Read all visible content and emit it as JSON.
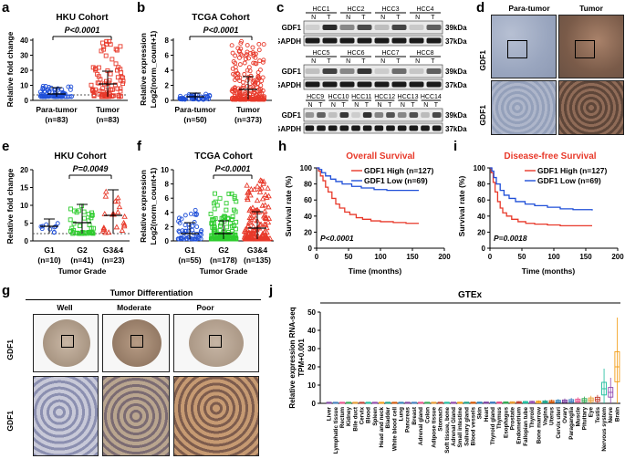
{
  "panels": {
    "a": {
      "letter": "a",
      "title": "HKU Cohort",
      "pvalue": "P<0.0001",
      "ylabel": "Relative fold change",
      "ticks": [
        "0",
        "10",
        "20",
        "30",
        "40"
      ],
      "groups": [
        {
          "name": "Para-tumor",
          "n": "(n=83)"
        },
        {
          "name": "Tumor",
          "n": "(n=83)"
        }
      ]
    },
    "b": {
      "letter": "b",
      "title": "TCGA Cohort",
      "pvalue": "P<0.0001",
      "ylabel": "Relative expression",
      "ylabel2": "Log2(norm_count+1)",
      "ticks": [
        "0",
        "2",
        "4",
        "6",
        "8"
      ],
      "groups": [
        {
          "name": "Para-tumor",
          "n": "(n=50)"
        },
        {
          "name": "Tumor",
          "n": "(n=373)"
        }
      ]
    },
    "c": {
      "letter": "c",
      "rows": [
        {
          "samples": [
            "HCC1",
            "HCC2",
            "HCC3",
            "HCC4"
          ],
          "gdf1": "GDF1",
          "gapdh": "GAPDH",
          "kda1": "39kDa",
          "kda2": "37kDa"
        },
        {
          "samples": [
            "HCC5",
            "HCC6",
            "HCC7",
            "HCC8"
          ],
          "gdf1": "GDF1",
          "gapdh": "GAPDH",
          "kda1": "39kDa",
          "kda2": "37kDa"
        },
        {
          "samples": [
            "HCC9",
            "HCC10",
            "HCC11",
            "HCC12",
            "HCC13",
            "HCC14"
          ],
          "gdf1": "GDF1",
          "gapdh": "GAPDH",
          "kda1": "39kDa",
          "kda2": "37kDa"
        }
      ],
      "nt": [
        "N",
        "T"
      ]
    },
    "d": {
      "letter": "d",
      "col1": "Para-tumor",
      "col2": "Tumor",
      "row_label": "GDF1"
    },
    "e": {
      "letter": "e",
      "title": "HKU Cohort",
      "pvalue": "P=0.0049",
      "ylabel": "Relative fold change",
      "xlabel": "Tumor Grade",
      "ticks": [
        "0",
        "5",
        "10",
        "15",
        "20"
      ],
      "groups": [
        {
          "name": "G1",
          "n": "(n=10)"
        },
        {
          "name": "G2",
          "n": "(n=41)"
        },
        {
          "name": "G3&4",
          "n": "(n=23)"
        }
      ]
    },
    "f": {
      "letter": "f",
      "title": "TCGA Cohort",
      "pvalue": "P<0.0001",
      "ylabel": "Relative expression",
      "ylabel2": "Log2(norm_count+1)",
      "xlabel": "Tumor Grade",
      "ticks": [
        "0",
        "2",
        "4",
        "6",
        "8",
        "10"
      ],
      "groups": [
        {
          "name": "G1",
          "n": "(n=55)"
        },
        {
          "name": "G2",
          "n": "(n=178)"
        },
        {
          "name": "G3&4",
          "n": "(n=135)"
        }
      ]
    },
    "h": {
      "letter": "h",
      "title": "Overall Survival",
      "pvalue": "P<0.0001",
      "ylabel": "Survival rate (%)",
      "xlabel": "Time (months)",
      "legend_high": "GDF1 High (n=127)",
      "legend_low": "GDF1 Low (n=69)",
      "yticks": [
        "0",
        "20",
        "40",
        "60",
        "80",
        "100"
      ],
      "xticks": [
        "0",
        "50",
        "100",
        "150",
        "200"
      ]
    },
    "i": {
      "letter": "i",
      "title": "Disease-free Survival",
      "pvalue": "P=0.0018",
      "ylabel": "Survival rate (%)",
      "xlabel": "Time (months)",
      "legend_high": "GDF1 High (n=127)",
      "legend_low": "GDF1 Low (n=69)",
      "yticks": [
        "0",
        "20",
        "40",
        "60",
        "80",
        "100"
      ],
      "xticks": [
        "0",
        "50",
        "100",
        "150",
        "200"
      ]
    },
    "g": {
      "letter": "g",
      "title": "Tumor Differentiation",
      "cols": [
        "Well",
        "Moderate",
        "Poor"
      ],
      "row_label": "GDF1"
    },
    "j": {
      "letter": "j",
      "title": "GTEx",
      "ylabel": "Relative expression RNA-seq",
      "ylabel2": "TPM+0.001",
      "yticks": [
        "0",
        "10",
        "20",
        "30",
        "40",
        "50"
      ],
      "tissues": [
        "Liver",
        "Lymphatic tissue",
        "Rectum",
        "Kidney",
        "Bile duct",
        "Cervix",
        "Blood",
        "Spleen",
        "Head and neck",
        "Bladder",
        "White blood cell",
        "Lung",
        "Pancreas",
        "Breast",
        "Adrenal gland",
        "Colon",
        "Adipose tissue",
        "Stomach",
        "Soft tissue, bone",
        "Adrenal Gland",
        "Small intestine",
        "Salivary gland",
        "Blood vessels",
        "Skin",
        "Heart",
        "Thyroid gland",
        "Thymus",
        "Esophagus",
        "Prostate",
        "Endometrium",
        "Fallopian tube",
        "Thyroid",
        "Bone marrow",
        "Vagina",
        "Uterus",
        "Cervix uteri",
        "Ovary",
        "Paraganglia",
        "Muscle",
        "Pituitary",
        "Eye",
        "Testis",
        "Nervous system",
        "Nerve",
        "Brain"
      ]
    }
  },
  "colors": {
    "blue": "#1f4fd8",
    "red": "#e8392a",
    "green": "#2ecc2e",
    "dark": "#222222"
  }
}
